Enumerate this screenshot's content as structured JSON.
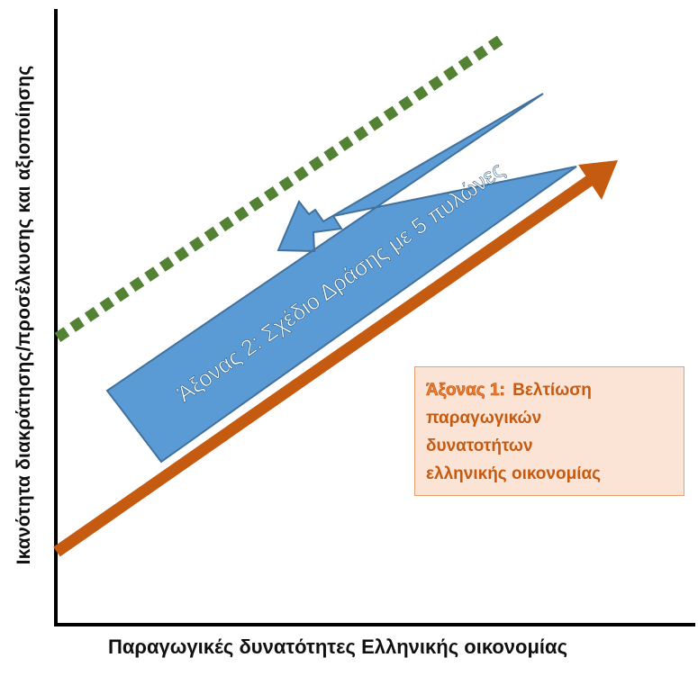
{
  "axes": {
    "y_label": "Ικανότητα διακράτησης/προσέλκυσης και αξιοποίησης",
    "x_label": "Παραγωγικές δυνατότητες Ελληνικής οικονομίας"
  },
  "blue_arrow": {
    "label": "Άξονας 2: Σχέδιο Δράσης με 5 πυλώνες",
    "fill_color": "#5b9bd5",
    "border_color": "#41719c"
  },
  "axis1_box": {
    "prefix": "Άξονας 1:",
    "lines": [
      "Βελτίωση",
      "παραγωγικών",
      "δυνατοτήτων",
      "ελληνικής οικονομίας"
    ],
    "fill_color": "#fbe4d5",
    "text_color": "#c55a11"
  },
  "orange_arrow": {
    "color": "#c55a11"
  },
  "dotted_line": {
    "color": "#548235"
  }
}
